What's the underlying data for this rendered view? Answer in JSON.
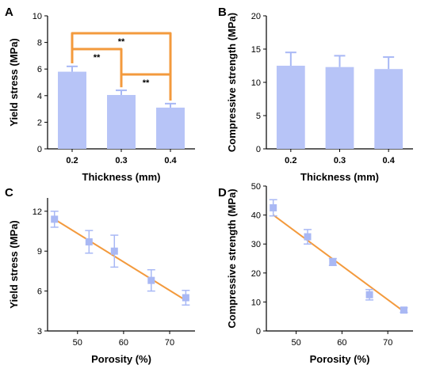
{
  "colors": {
    "bar": "#b7c4f7",
    "error_bar": "#a8b8f5",
    "marker": "#a9b8f4",
    "fit_line": "#f39a3d",
    "bracket": "#f39a3d",
    "axis": "#000000"
  },
  "chart_data": [
    {
      "panel": "A",
      "type": "bar",
      "categories": [
        "0.2",
        "0.3",
        "0.4"
      ],
      "values": [
        5.8,
        4.05,
        3.1
      ],
      "errors": [
        0.4,
        0.35,
        0.3
      ],
      "xlabel": "Thickness (mm)",
      "ylabel": "Yield stress (MPa)",
      "ylim": [
        0,
        10
      ],
      "yticks": [
        "0",
        "2",
        "4",
        "6",
        "8",
        "10"
      ],
      "significance": [
        {
          "from": "0.2",
          "to": "0.4",
          "label": "**"
        },
        {
          "from": "0.2",
          "to": "0.3",
          "label": "**"
        },
        {
          "from": "0.3",
          "to": "0.4",
          "label": "**"
        }
      ]
    },
    {
      "panel": "B",
      "type": "bar",
      "categories": [
        "0.2",
        "0.3",
        "0.4"
      ],
      "values": [
        12.5,
        12.3,
        12.0
      ],
      "errors": [
        2.0,
        1.7,
        1.8
      ],
      "xlabel": "Thickness (mm)",
      "ylabel": "Compressive strength (MPa)",
      "ylim": [
        0,
        20
      ],
      "yticks": [
        "0",
        "5",
        "10",
        "15",
        "20"
      ]
    },
    {
      "panel": "C",
      "type": "scatter",
      "x": [
        45,
        52.5,
        58,
        66,
        73.5
      ],
      "y": [
        11.4,
        9.7,
        9.0,
        6.8,
        5.5
      ],
      "yerr": [
        0.6,
        0.85,
        1.2,
        0.8,
        0.55
      ],
      "xerr": [
        0.6,
        0.6,
        0.6,
        0.6,
        0.6
      ],
      "fit": {
        "x": [
          45,
          73.5
        ],
        "y": [
          11.4,
          5.3
        ]
      },
      "xlabel": "Porosity (%)",
      "ylabel": "Yield stress (MPa)",
      "xlim": [
        43.5,
        75.5
      ],
      "ylim": [
        3,
        13
      ],
      "xticks": [
        "50",
        "60",
        "70"
      ],
      "yticks": [
        "3",
        "6",
        "9",
        "12"
      ]
    },
    {
      "panel": "D",
      "type": "scatter",
      "x": [
        45,
        52.5,
        58,
        66,
        73.5
      ],
      "y": [
        42.5,
        32.5,
        23.8,
        12.5,
        7.2
      ],
      "yerr": [
        2.8,
        2.5,
        1.2,
        1.8,
        0.8
      ],
      "xerr": [
        0.6,
        0.6,
        0.6,
        0.6,
        0.6
      ],
      "fit": {
        "x": [
          45,
          73.5
        ],
        "y": [
          40.0,
          6.7
        ]
      },
      "xlabel": "Porosity (%)",
      "ylabel": "Compressive strength (MPa)",
      "xlim": [
        43.5,
        75.5
      ],
      "ylim": [
        0,
        50
      ],
      "xticks": [
        "50",
        "60",
        "70"
      ],
      "yticks": [
        "0",
        "10",
        "20",
        "30",
        "40",
        "50"
      ]
    }
  ]
}
